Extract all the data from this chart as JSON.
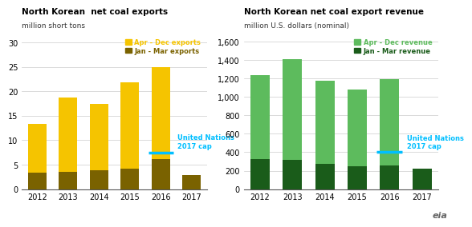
{
  "years": [
    2012,
    2013,
    2014,
    2015,
    2016,
    2017
  ],
  "exports_jan_mar": [
    3.3,
    3.6,
    3.8,
    4.2,
    6.1,
    2.9
  ],
  "exports_apr_dec": [
    10.0,
    15.1,
    13.6,
    17.7,
    18.9,
    0.0
  ],
  "exports_ylim": [
    0,
    32
  ],
  "exports_yticks": [
    0,
    5,
    10,
    15,
    20,
    25,
    30
  ],
  "exports_un_cap": 7.5,
  "exports_title": "North Korean  net coal exports",
  "exports_subtitle": "million short tons",
  "revenue_jan_mar": [
    325,
    315,
    275,
    250,
    260,
    225
  ],
  "revenue_apr_dec": [
    910,
    1095,
    900,
    830,
    935,
    0
  ],
  "revenue_ylim": [
    0,
    1700
  ],
  "revenue_yticks": [
    0,
    200,
    400,
    600,
    800,
    1000,
    1200,
    1400,
    1600
  ],
  "revenue_un_cap": 400,
  "revenue_title": "North Korean net coal export revenue",
  "revenue_subtitle": "million U.S. dollars (nominal)",
  "color_apr_dec_exports": "#F5C400",
  "color_jan_mar_exports": "#7A6200",
  "color_apr_dec_revenue": "#5DBB5D",
  "color_jan_mar_revenue": "#1A5C1A",
  "color_un_cap": "#00BFFF",
  "legend_apr_dec_exports": "Apr - Dec exports",
  "legend_jan_mar_exports": "Jan - Mar exports",
  "legend_apr_dec_revenue": "Apr - Dec revenue",
  "legend_jan_mar_revenue": "Jan - Mar revenue",
  "un_cap_label_exports": "United Nations\n2017 cap",
  "un_cap_label_revenue": "United Nations\n2017 cap",
  "background_color": "#ffffff",
  "grid_color": "#cccccc"
}
